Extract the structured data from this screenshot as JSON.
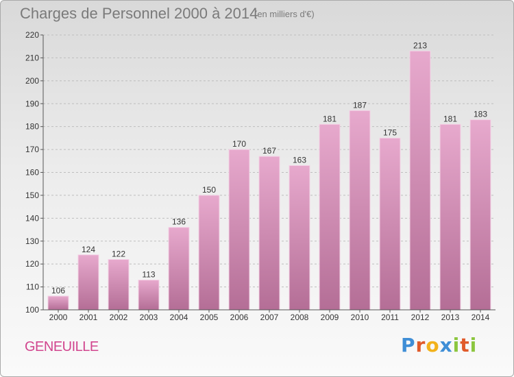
{
  "header": {
    "title": "Charges de Personnel 2000 à 2014",
    "subtitle": "(en milliers d'€)"
  },
  "footer": {
    "commune": "GENEUILLE",
    "logo_text": "Proxiti"
  },
  "colors": {
    "bar_light": "#e7a9cd",
    "bar_dark": "#b46e96",
    "commune_text": "#d1458e",
    "logo_p": "#3f8ed6",
    "logo_r": "#e05a2a",
    "logo_o": "#f2b21b",
    "logo_x": "#3f8ed6",
    "logo_i": "#8cc63f",
    "logo_t": "#e05a2a"
  },
  "chart_data": {
    "type": "bar",
    "title": "Charges de Personnel 2000 à 2014",
    "categories": [
      "2000",
      "2001",
      "2002",
      "2003",
      "2004",
      "2005",
      "2006",
      "2007",
      "2008",
      "2009",
      "2010",
      "2011",
      "2012",
      "2013",
      "2014"
    ],
    "values": [
      106,
      124,
      122,
      113,
      136,
      150,
      170,
      167,
      163,
      181,
      187,
      175,
      213,
      181,
      183
    ],
    "ylim": [
      100,
      220
    ],
    "yticks": [
      100,
      110,
      120,
      130,
      140,
      150,
      160,
      170,
      180,
      190,
      200,
      210,
      220
    ],
    "grid": "horizontal dashed",
    "xlabel": "",
    "ylabel": ""
  }
}
